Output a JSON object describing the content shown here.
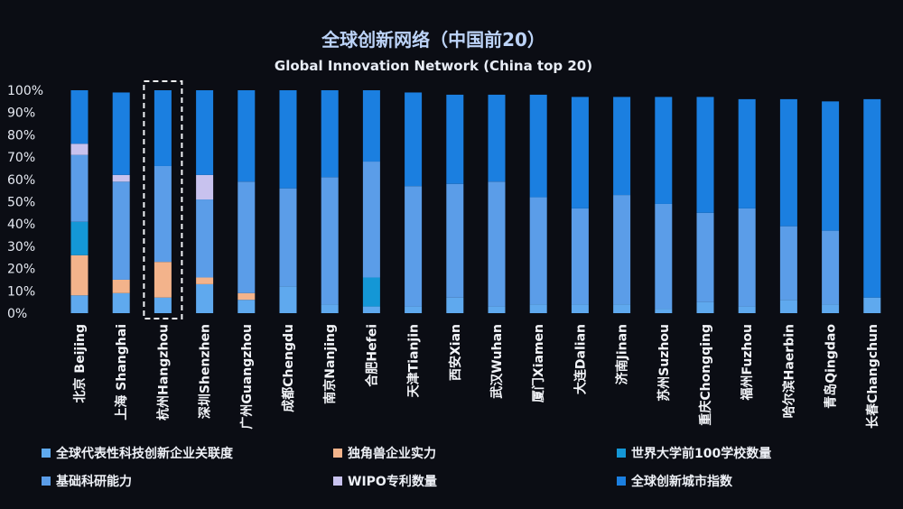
{
  "chart_data": {
    "type": "bar",
    "stacked": true,
    "title": "全球创新网络（中国前20）",
    "subtitle": "Global Innovation Network (China top 20)",
    "xlabel": "",
    "ylabel": "",
    "ylim": [
      0,
      100
    ],
    "yticks": [
      "0%",
      "10%",
      "20%",
      "30%",
      "40%",
      "50%",
      "60%",
      "70%",
      "80%",
      "90%",
      "100%"
    ],
    "grid": false,
    "legend_position": "bottom",
    "highlighted_category": "杭州Hangzhou",
    "categories": [
      "北京 Beijing",
      "上海 Shanghai",
      "杭州Hangzhou",
      "深圳Shenzhen",
      "广州Guangzhou",
      "成都Chengdu",
      "南京Nanjing",
      "合肥Hefei",
      "天津Tianjin",
      "西安Xian",
      "武汉Wuhan",
      "厦门Xiamen",
      "大连Dalian",
      "济南Jinan",
      "苏州Suzhou",
      "重庆Chongqing",
      "福州Fuzhou",
      "哈尔滨Haerbin",
      "青岛Qingdao",
      "长春Changchun"
    ],
    "series": [
      {
        "name": "全球代表性科技创新企业关联度",
        "color": "#5fa9ee",
        "values": [
          8,
          9,
          7,
          13,
          6,
          12,
          4,
          3,
          3,
          7,
          3,
          4,
          4,
          4,
          2,
          5,
          3,
          6,
          4,
          7
        ]
      },
      {
        "name": "独角兽企业实力",
        "color": "#f3b38b",
        "values": [
          18,
          6,
          16,
          3,
          3,
          0,
          0,
          0,
          0,
          0,
          0,
          0,
          0,
          0,
          0,
          0,
          0,
          0,
          0,
          0
        ]
      },
      {
        "name": "世界大学前100学校数量",
        "color": "#1497d6",
        "values": [
          15,
          0,
          0,
          0,
          0,
          0,
          0,
          13,
          0,
          0,
          0,
          0,
          0,
          0,
          0,
          0,
          0,
          0,
          0,
          0
        ]
      },
      {
        "name": "基础科研能力",
        "color": "#5b9de8",
        "values": [
          30,
          44,
          43,
          35,
          50,
          44,
          57,
          52,
          54,
          51,
          56,
          48,
          43,
          49,
          47,
          40,
          44,
          33,
          33,
          0
        ]
      },
      {
        "name": "WIPO专利数量",
        "color": "#c8c2ee",
        "values": [
          5,
          3,
          0,
          11,
          0,
          0,
          0,
          0,
          0,
          0,
          0,
          0,
          0,
          0,
          0,
          0,
          0,
          0,
          0,
          0
        ]
      },
      {
        "name": "全球创新城市指数",
        "color": "#1b7fe0",
        "values": [
          24,
          37,
          34,
          38,
          41,
          44,
          39,
          32,
          42,
          40,
          39,
          46,
          50,
          44,
          48,
          52,
          49,
          57,
          58,
          89
        ]
      }
    ]
  }
}
